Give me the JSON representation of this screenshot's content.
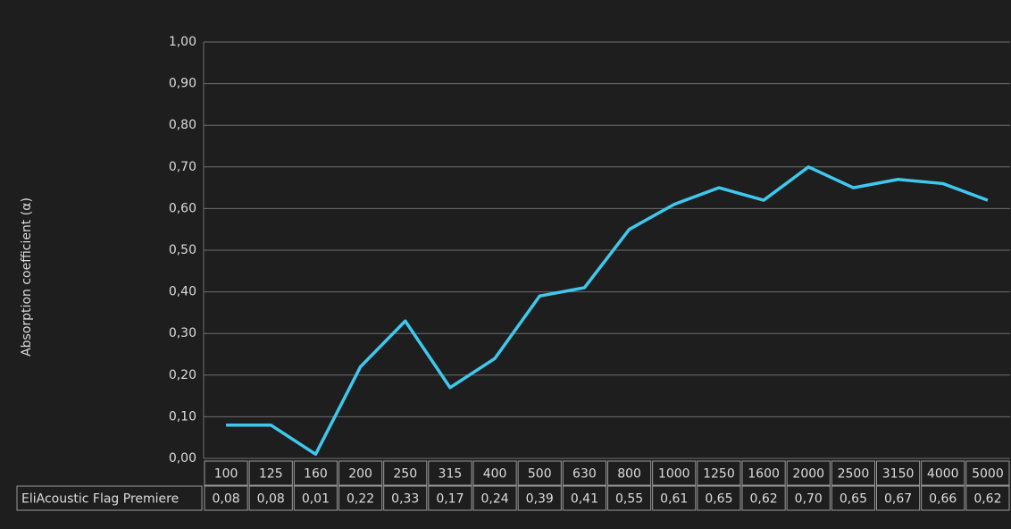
{
  "chart_data": {
    "type": "line",
    "y_label": "Absorption coefficient (α)",
    "categories": [
      "100",
      "125",
      "160",
      "200",
      "250",
      "315",
      "400",
      "500",
      "630",
      "800",
      "1000",
      "1250",
      "1600",
      "2000",
      "2500",
      "3150",
      "4000",
      "5000"
    ],
    "series": [
      {
        "name": "EliAcoustic Flag Premiere",
        "color": "#3fc8ee",
        "values": [
          0.08,
          0.08,
          0.01,
          0.22,
          0.33,
          0.17,
          0.24,
          0.39,
          0.41,
          0.55,
          0.61,
          0.65,
          0.62,
          0.7,
          0.65,
          0.67,
          0.66,
          0.62
        ],
        "value_labels": [
          "0,08",
          "0,08",
          "0,01",
          "0,22",
          "0,33",
          "0,17",
          "0,24",
          "0,39",
          "0,41",
          "0,55",
          "0,61",
          "0,65",
          "0,62",
          "0,70",
          "0,65",
          "0,67",
          "0,66",
          "0,62"
        ]
      }
    ],
    "ylim": [
      0,
      1
    ],
    "yticks": [
      {
        "value": 0,
        "label": "0,00"
      },
      {
        "value": 0.1,
        "label": "0,10"
      },
      {
        "value": 0.2,
        "label": "0,20"
      },
      {
        "value": 0.3,
        "label": "0,30"
      },
      {
        "value": 0.4,
        "label": "0,40"
      },
      {
        "value": 0.5,
        "label": "0,50"
      },
      {
        "value": 0.6,
        "label": "0,60"
      },
      {
        "value": 0.7,
        "label": "0,70"
      },
      {
        "value": 0.8,
        "label": "0,80"
      },
      {
        "value": 0.9,
        "label": "0,90"
      },
      {
        "value": 1,
        "label": "1,00"
      }
    ],
    "grid": true
  }
}
